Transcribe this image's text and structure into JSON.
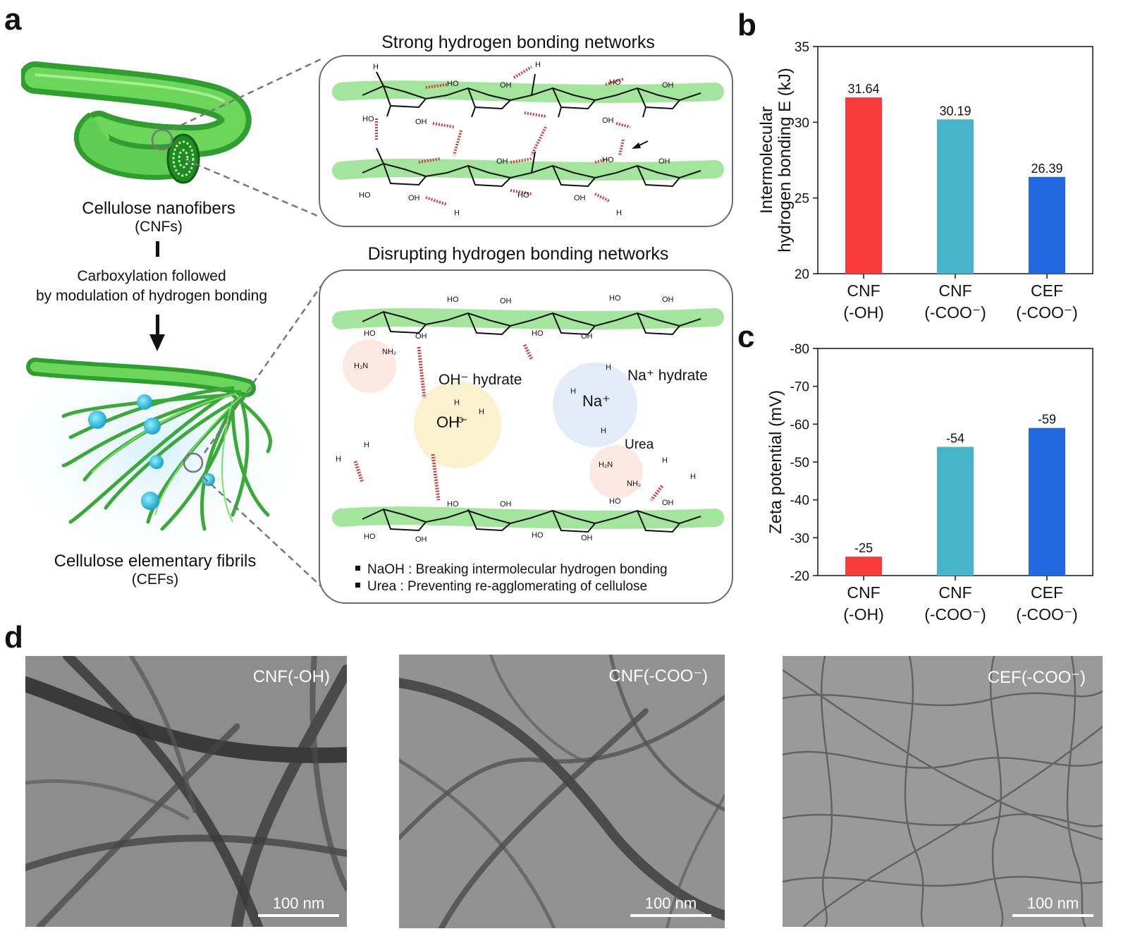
{
  "panels": {
    "a": "a",
    "b": "b",
    "c": "c",
    "d": "d"
  },
  "panel_a": {
    "top_fiber_label": "Cellulose nanofibers",
    "top_fiber_abbr": "(CNFs)",
    "process_line1": "Carboxylation followed",
    "process_line2": "by modulation of hydrogen bonding",
    "bottom_fiber_label": "Cellulose elementary fibrils",
    "bottom_fiber_abbr": "(CEFs)",
    "box_top_title": "Strong hydrogen bonding networks",
    "box_bottom_title": "Disrupting hydrogen bonding networks",
    "oh_hydrate_label": "OH⁻ hydrate",
    "oh_ion": "OH⁻",
    "na_hydrate_label": "Na⁺ hydrate",
    "na_ion": "Na⁺",
    "urea_label": "Urea",
    "legend": [
      "NaOH : Breaking intermolecular hydrogen bonding",
      "Urea : Preventing re-agglomerating of cellulose"
    ],
    "atoms": {
      "oh": "OH",
      "ho": "HO",
      "h": "H",
      "o": "O",
      "nh2": "NH₂",
      "h2n": "H₂N"
    }
  },
  "chart_data": [
    {
      "type": "bar",
      "id": "b",
      "ylabel": [
        "Intermolecular",
        "hydrogen bonding E (kJ)"
      ],
      "categories": [
        [
          "CNF",
          "(-OH)"
        ],
        [
          "CNF",
          "(-COO⁻)"
        ],
        [
          "CEF",
          "(-COO⁻)"
        ]
      ],
      "values": [
        31.64,
        30.19,
        26.39
      ],
      "value_labels": [
        "31.64",
        "30.19",
        "26.39"
      ],
      "ylim": [
        20,
        35
      ],
      "yticks": [
        20,
        25,
        30,
        35
      ],
      "inverted": false,
      "colors": [
        "#f73b3c",
        "#46b5c9",
        "#2268e0"
      ]
    },
    {
      "type": "bar",
      "id": "c",
      "ylabel": [
        "Zeta potential (mV)"
      ],
      "categories": [
        [
          "CNF",
          "(-OH)"
        ],
        [
          "CNF",
          "(-COO⁻)"
        ],
        [
          "CEF",
          "(-COO⁻)"
        ]
      ],
      "values": [
        -25,
        -54,
        -59
      ],
      "value_labels": [
        "-25",
        "-54",
        "-59"
      ],
      "ylim": [
        -20,
        -80
      ],
      "yticks": [
        -20,
        -30,
        -40,
        -50,
        -60,
        -70,
        -80
      ],
      "inverted": true,
      "colors": [
        "#f73b3c",
        "#46b5c9",
        "#2268e0"
      ]
    }
  ],
  "panel_d": {
    "images": [
      {
        "tag": "CNF(-OH)",
        "scale": "100 nm"
      },
      {
        "tag": "CNF(-COO⁻)",
        "scale": "100 nm"
      },
      {
        "tag": "CEF(-COO⁻)",
        "scale": "100 nm"
      }
    ]
  }
}
